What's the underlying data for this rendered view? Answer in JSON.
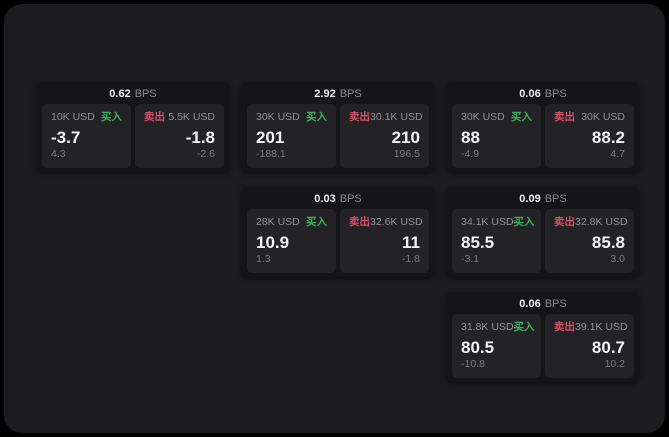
{
  "labels": {
    "bps_suffix": "BPS",
    "buy": "买入",
    "sell": "卖出"
  },
  "colors": {
    "buy_green": "#3fae5c",
    "sell_red": "#d4506a",
    "container_bg": "#1c1c1e",
    "card_bg": "#151517",
    "panel_bg": "#232325"
  },
  "cards": [
    {
      "bps": "0.62",
      "buy": {
        "size": "10K USD",
        "value": "-3.7",
        "delta": "4.3"
      },
      "sell": {
        "size": "5.5K USD",
        "value": "-1.8",
        "delta": "-2.6"
      }
    },
    {
      "bps": "2.92",
      "buy": {
        "size": "30K USD",
        "value": "201",
        "delta": "-188.1"
      },
      "sell": {
        "size": "30.1K USD",
        "value": "210",
        "delta": "196.5"
      }
    },
    {
      "bps": "0.06",
      "buy": {
        "size": "30K USD",
        "value": "88",
        "delta": "-4.9"
      },
      "sell": {
        "size": "30K USD",
        "value": "88.2",
        "delta": "4.7"
      }
    },
    {
      "bps": "0.03",
      "buy": {
        "size": "28K USD",
        "value": "10.9",
        "delta": "1.3"
      },
      "sell": {
        "size": "32.6K USD",
        "value": "11",
        "delta": "-1.8"
      }
    },
    {
      "bps": "0.09",
      "buy": {
        "size": "34.1K USD",
        "value": "85.5",
        "delta": "-3.1"
      },
      "sell": {
        "size": "32.8K USD",
        "value": "85.8",
        "delta": "3.0"
      }
    },
    {
      "bps": "0.06",
      "buy": {
        "size": "31.8K USD",
        "value": "80.5",
        "delta": "-10.8"
      },
      "sell": {
        "size": "39.1K USD",
        "value": "80.7",
        "delta": "10.2"
      }
    }
  ]
}
